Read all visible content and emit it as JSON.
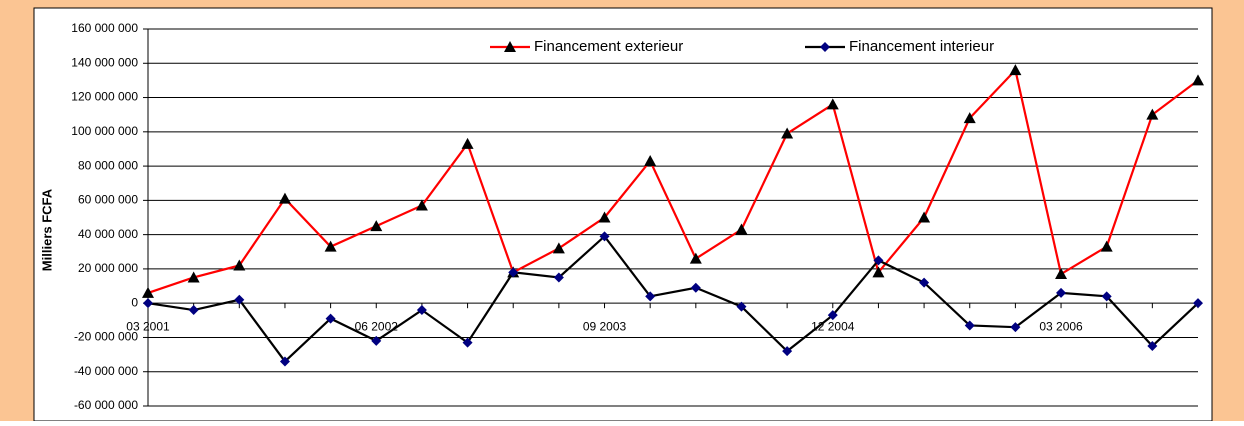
{
  "chart_data": {
    "type": "line",
    "y_label": "Milliers FCFA",
    "categories": [
      "03 2001",
      null,
      null,
      null,
      null,
      "06 2002",
      null,
      null,
      null,
      null,
      "09 2003",
      null,
      null,
      null,
      null,
      "12 2004",
      null,
      null,
      null,
      null,
      "03 2006",
      null,
      null,
      null
    ],
    "series": [
      {
        "name": "Financement exterieur",
        "color": "#ff0000",
        "marker": "triangle",
        "marker_color": "#000000",
        "values": [
          6000000,
          15000000,
          22000000,
          61000000,
          33000000,
          45000000,
          57000000,
          93000000,
          18000000,
          32000000,
          50000000,
          83000000,
          26000000,
          43000000,
          99000000,
          116000000,
          18000000,
          50000000,
          108000000,
          136000000,
          17000000,
          33000000,
          110000000,
          130000000
        ]
      },
      {
        "name": "Financement interieur",
        "color": "#000000",
        "marker": "diamond",
        "marker_color": "#000080",
        "values": [
          0,
          -4000000,
          2000000,
          -34000000,
          -9000000,
          -22000000,
          -4000000,
          -23000000,
          18000000,
          15000000,
          39000000,
          4000000,
          9000000,
          -2000000,
          -28000000,
          -7000000,
          25000000,
          12000000,
          -13000000,
          -14000000,
          6000000,
          4000000,
          -25000000,
          0
        ]
      }
    ],
    "ylim": [
      -60000000,
      160000000
    ],
    "yticks": [
      {
        "value": -60000000,
        "label": "-60 000 000"
      },
      {
        "value": -40000000,
        "label": "-40 000 000"
      },
      {
        "value": -20000000,
        "label": "-20 000 000"
      },
      0,
      {
        "value": 20000000,
        "label": "20 000 000"
      },
      {
        "value": 40000000,
        "label": "40 000 000"
      },
      {
        "value": 60000000,
        "label": "60 000 000"
      },
      {
        "value": 80000000,
        "label": "80 000 000"
      },
      {
        "value": 100000000,
        "label": "100 000 000"
      },
      {
        "value": 120000000,
        "label": "120 000 000"
      },
      {
        "value": 140000000,
        "label": "140 000 000"
      },
      {
        "value": 160000000,
        "label": "160 000 000"
      }
    ],
    "grid": true,
    "legend": "top"
  }
}
